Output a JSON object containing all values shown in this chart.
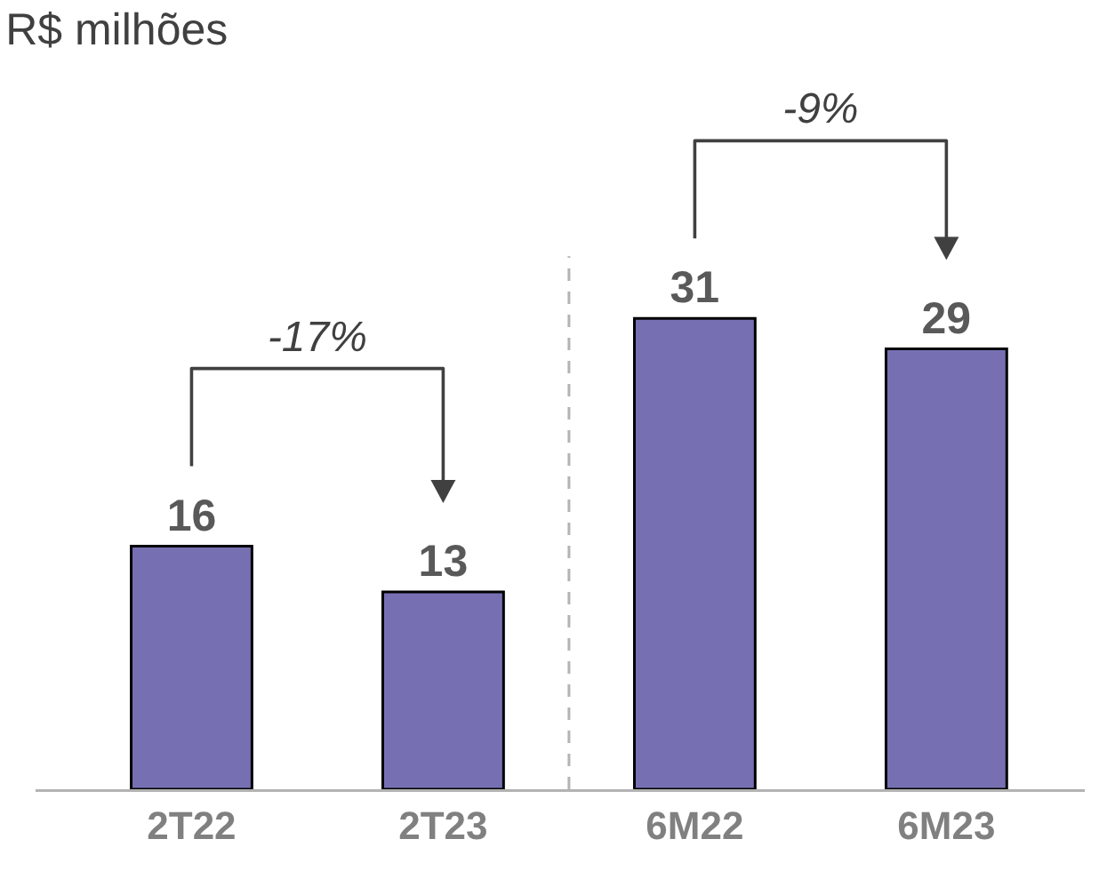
{
  "chart_data": {
    "type": "bar",
    "title": "R$ milhões",
    "categories": [
      "2T22",
      "2T23",
      "6M22",
      "6M23"
    ],
    "values": [
      16,
      13,
      31,
      29
    ],
    "color": "#7670b3",
    "data_labels": true,
    "annotations": [
      "-17%",
      "-9%"
    ]
  }
}
